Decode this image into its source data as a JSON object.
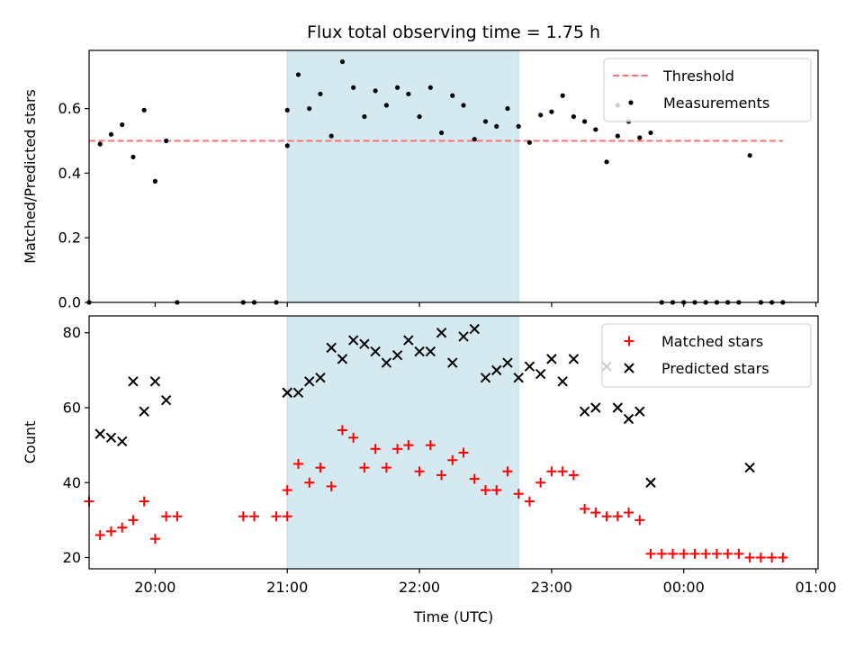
{
  "chart_data": {
    "type": "scatter",
    "title": "Flux total observing time = 1.75 h",
    "xlabel": "Time (UTC)",
    "x_axis": {
      "unit": "UTC time",
      "range": [
        "19:30",
        "01:01"
      ],
      "ticks": [
        "20:00",
        "21:00",
        "22:00",
        "23:00",
        "00:00",
        "01:00"
      ]
    },
    "highlight_window": {
      "start": "21:00",
      "end": "22:45",
      "color": "#d4eaf0"
    },
    "panels": [
      {
        "ylabel": "Matched/Predicted stars",
        "ylim": [
          0,
          0.78
        ],
        "yticks": [
          "0.0",
          "0.2",
          "0.4",
          "0.6"
        ],
        "legend_position": "top-right",
        "threshold": {
          "name": "Threshold",
          "value": 0.5,
          "x_range": [
            "19:30",
            "00:45"
          ],
          "color": "#ff7070",
          "style": "dashed"
        },
        "series": [
          {
            "name": "Measurements",
            "marker": "dot",
            "color": "#000000",
            "points": [
              [
                "19:30",
                0.0
              ],
              [
                "19:35",
                0.49
              ],
              [
                "19:40",
                0.52
              ],
              [
                "19:45",
                0.55
              ],
              [
                "19:50",
                0.45
              ],
              [
                "19:55",
                0.595
              ],
              [
                "20:00",
                0.375
              ],
              [
                "20:05",
                0.5
              ],
              [
                "20:10",
                0.0
              ],
              [
                "20:40",
                0.0
              ],
              [
                "20:45",
                0.0
              ],
              [
                "20:55",
                0.0
              ],
              [
                "21:00",
                0.485
              ],
              [
                "21:00",
                0.595
              ],
              [
                "21:05",
                0.705
              ],
              [
                "21:10",
                0.6
              ],
              [
                "21:15",
                0.645
              ],
              [
                "21:20",
                0.515
              ],
              [
                "21:25",
                0.745
              ],
              [
                "21:30",
                0.665
              ],
              [
                "21:35",
                0.575
              ],
              [
                "21:40",
                0.655
              ],
              [
                "21:45",
                0.61
              ],
              [
                "21:50",
                0.665
              ],
              [
                "21:55",
                0.645
              ],
              [
                "22:00",
                0.575
              ],
              [
                "22:05",
                0.665
              ],
              [
                "22:10",
                0.525
              ],
              [
                "22:15",
                0.64
              ],
              [
                "22:20",
                0.61
              ],
              [
                "22:25",
                0.505
              ],
              [
                "22:30",
                0.56
              ],
              [
                "22:35",
                0.545
              ],
              [
                "22:40",
                0.6
              ],
              [
                "22:45",
                0.545
              ],
              [
                "22:50",
                0.495
              ],
              [
                "22:55",
                0.58
              ],
              [
                "23:00",
                0.59
              ],
              [
                "23:05",
                0.64
              ],
              [
                "23:10",
                0.575
              ],
              [
                "23:15",
                0.56
              ],
              [
                "23:20",
                0.535
              ],
              [
                "23:25",
                0.435
              ],
              [
                "23:30",
                0.61
              ],
              [
                "23:30",
                0.515
              ],
              [
                "23:35",
                0.56
              ],
              [
                "23:40",
                0.51
              ],
              [
                "23:45",
                0.525
              ],
              [
                "23:50",
                0.0
              ],
              [
                "23:55",
                0.0
              ],
              [
                "00:00",
                0.0
              ],
              [
                "00:05",
                0.0
              ],
              [
                "00:10",
                0.0
              ],
              [
                "00:15",
                0.0
              ],
              [
                "00:20",
                0.0
              ],
              [
                "00:25",
                0.0
              ],
              [
                "00:30",
                0.455
              ],
              [
                "00:35",
                0.0
              ],
              [
                "00:40",
                0.0
              ],
              [
                "00:45",
                0.0
              ]
            ]
          }
        ]
      },
      {
        "ylabel": "Count",
        "ylim": [
          17,
          84.5
        ],
        "yticks": [
          "20",
          "40",
          "60",
          "80"
        ],
        "legend_position": "top-right",
        "series": [
          {
            "name": "Matched stars",
            "marker": "plus",
            "color": "#ff0000",
            "points": [
              [
                "19:30",
                35
              ],
              [
                "19:35",
                26
              ],
              [
                "19:40",
                27
              ],
              [
                "19:45",
                28
              ],
              [
                "19:50",
                30
              ],
              [
                "19:55",
                35
              ],
              [
                "20:00",
                25
              ],
              [
                "20:05",
                31
              ],
              [
                "20:10",
                31
              ],
              [
                "20:40",
                31
              ],
              [
                "20:45",
                31
              ],
              [
                "20:55",
                31
              ],
              [
                "21:00",
                31
              ],
              [
                "21:00",
                38
              ],
              [
                "21:05",
                45
              ],
              [
                "21:10",
                40
              ],
              [
                "21:15",
                44
              ],
              [
                "21:20",
                39
              ],
              [
                "21:25",
                54
              ],
              [
                "21:30",
                52
              ],
              [
                "21:35",
                44
              ],
              [
                "21:40",
                49
              ],
              [
                "21:45",
                44
              ],
              [
                "21:50",
                49
              ],
              [
                "21:55",
                50
              ],
              [
                "22:00",
                43
              ],
              [
                "22:05",
                50
              ],
              [
                "22:10",
                42
              ],
              [
                "22:15",
                46
              ],
              [
                "22:20",
                48
              ],
              [
                "22:25",
                41
              ],
              [
                "22:30",
                38
              ],
              [
                "22:35",
                38
              ],
              [
                "22:40",
                43
              ],
              [
                "22:45",
                37
              ],
              [
                "22:50",
                35
              ],
              [
                "22:55",
                40
              ],
              [
                "23:00",
                43
              ],
              [
                "23:05",
                43
              ],
              [
                "23:10",
                42
              ],
              [
                "23:15",
                33
              ],
              [
                "23:20",
                32
              ],
              [
                "23:25",
                31
              ],
              [
                "23:30",
                31
              ],
              [
                "23:35",
                32
              ],
              [
                "23:40",
                30
              ],
              [
                "23:45",
                21
              ],
              [
                "23:50",
                21
              ],
              [
                "23:55",
                21
              ],
              [
                "00:00",
                21
              ],
              [
                "00:05",
                21
              ],
              [
                "00:10",
                21
              ],
              [
                "00:15",
                21
              ],
              [
                "00:20",
                21
              ],
              [
                "00:25",
                21
              ],
              [
                "00:30",
                20
              ],
              [
                "00:35",
                20
              ],
              [
                "00:40",
                20
              ],
              [
                "00:45",
                20
              ]
            ]
          },
          {
            "name": "Predicted stars",
            "marker": "x",
            "color": "#000000",
            "points": [
              [
                "19:35",
                53
              ],
              [
                "19:40",
                52
              ],
              [
                "19:45",
                51
              ],
              [
                "19:50",
                67
              ],
              [
                "19:55",
                59
              ],
              [
                "20:00",
                67
              ],
              [
                "20:05",
                62
              ],
              [
                "21:00",
                64
              ],
              [
                "21:00",
                64
              ],
              [
                "21:05",
                64
              ],
              [
                "21:10",
                67
              ],
              [
                "21:15",
                68
              ],
              [
                "21:20",
                76
              ],
              [
                "21:25",
                73
              ],
              [
                "21:30",
                78
              ],
              [
                "21:35",
                77
              ],
              [
                "21:40",
                75
              ],
              [
                "21:45",
                72
              ],
              [
                "21:50",
                74
              ],
              [
                "21:55",
                78
              ],
              [
                "22:00",
                75
              ],
              [
                "22:05",
                75
              ],
              [
                "22:10",
                80
              ],
              [
                "22:15",
                72
              ],
              [
                "22:20",
                79
              ],
              [
                "22:25",
                81
              ],
              [
                "22:30",
                68
              ],
              [
                "22:35",
                70
              ],
              [
                "22:40",
                72
              ],
              [
                "22:45",
                68
              ],
              [
                "22:50",
                71
              ],
              [
                "22:55",
                69
              ],
              [
                "23:00",
                73
              ],
              [
                "23:05",
                67
              ],
              [
                "23:10",
                73
              ],
              [
                "23:15",
                59
              ],
              [
                "23:20",
                60
              ],
              [
                "23:25",
                71
              ],
              [
                "23:30",
                60
              ],
              [
                "23:35",
                57
              ],
              [
                "23:40",
                59
              ],
              [
                "23:45",
                40
              ],
              [
                "00:30",
                44
              ]
            ]
          }
        ]
      }
    ]
  }
}
